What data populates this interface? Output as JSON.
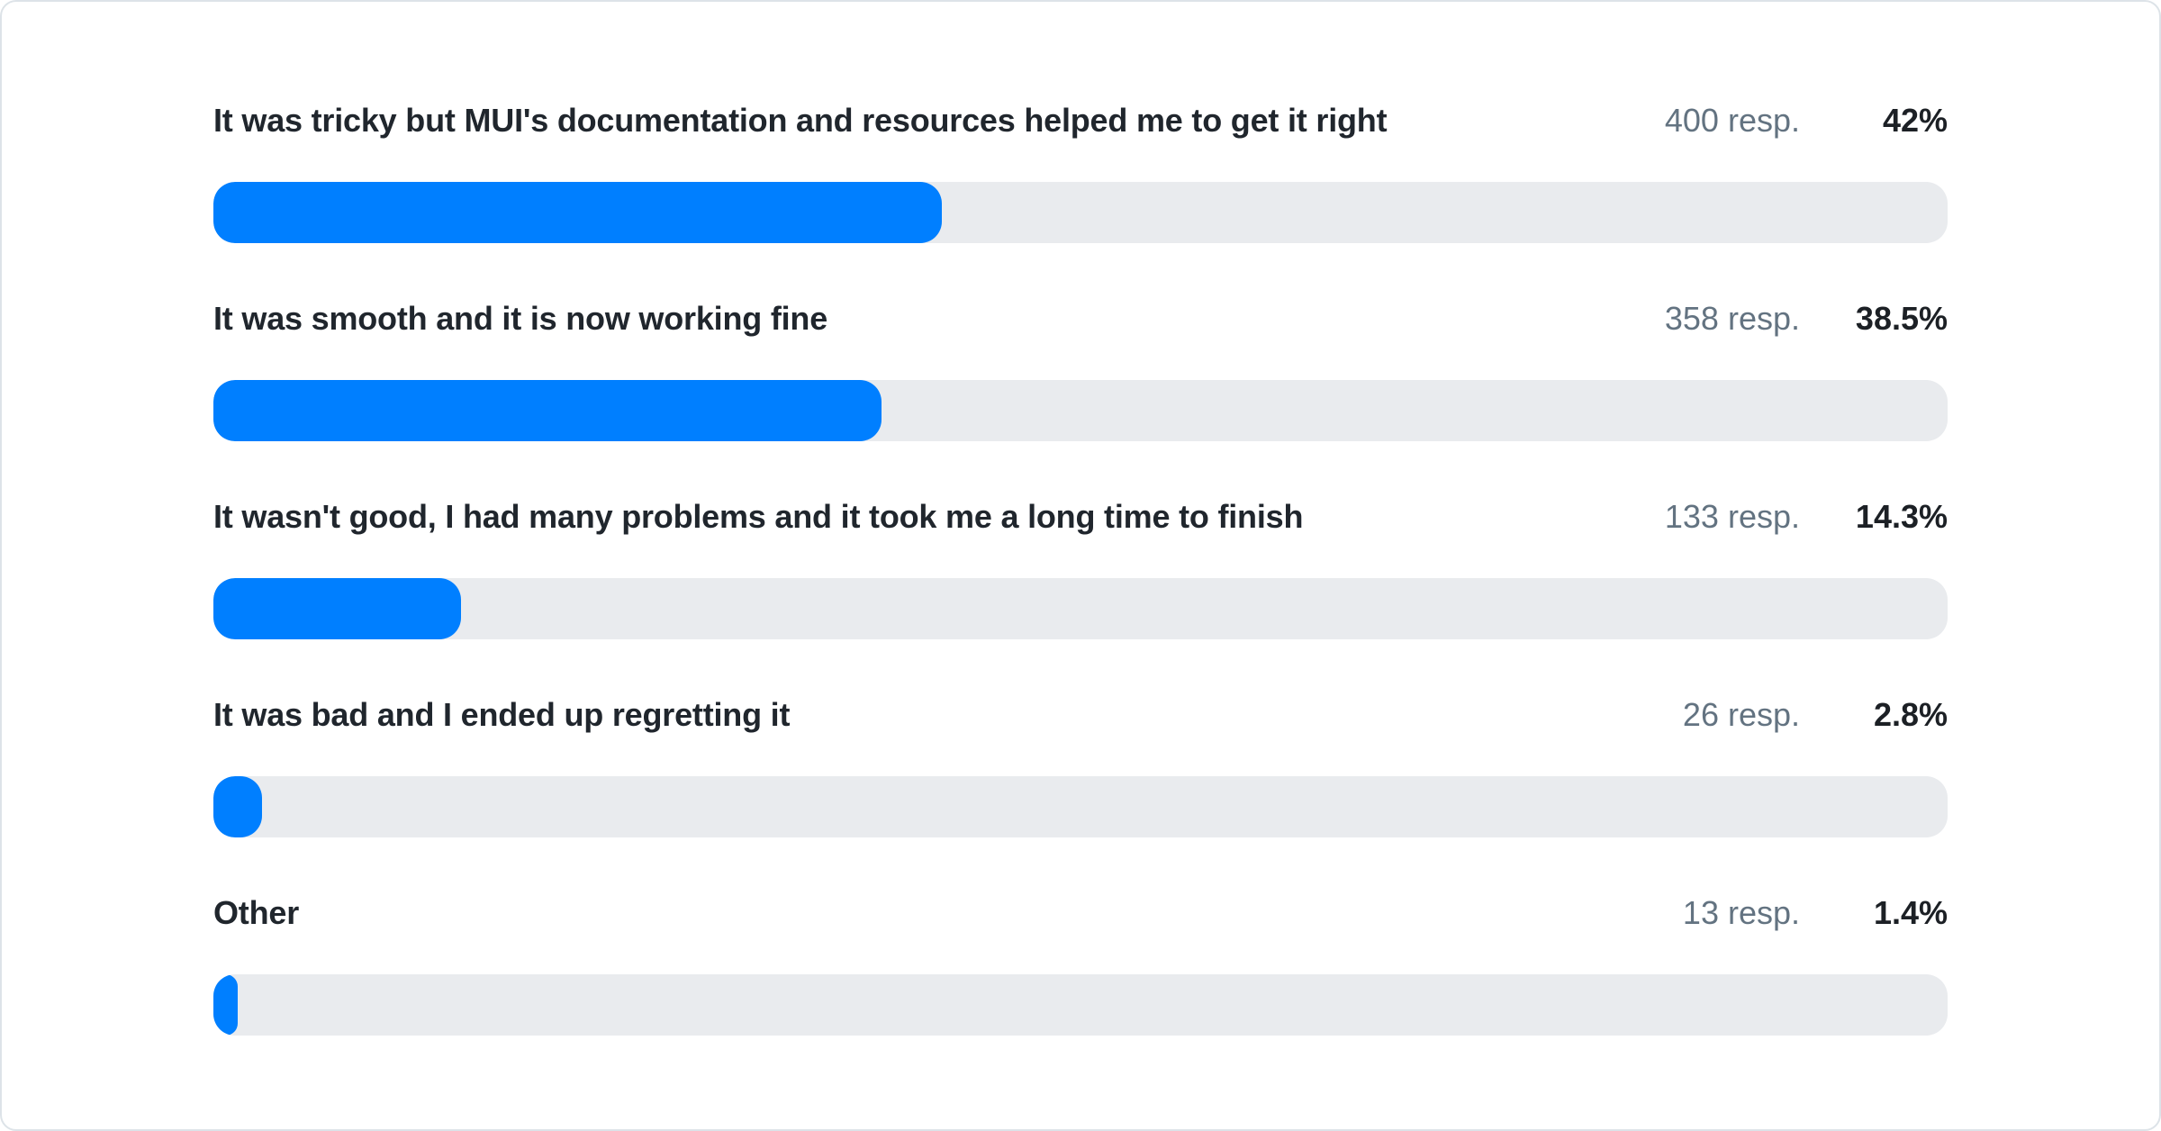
{
  "chart_data": {
    "type": "bar",
    "orientation": "horizontal",
    "unit": "%",
    "xlim": [
      0,
      100
    ],
    "grid": false,
    "legend": false,
    "categories": [
      "It was tricky but MUI's documentation and resources helped me to get it right",
      "It was smooth and it is now working fine",
      "It wasn't good, I had many problems and it took me a long time to finish",
      "It was bad and I ended up regretting it",
      "Other"
    ],
    "values": [
      42,
      38.5,
      14.3,
      2.8,
      1.4
    ],
    "response_counts": [
      400,
      358,
      133,
      26,
      13
    ],
    "rows": [
      {
        "label": "It was tricky but MUI's documentation and resources helped me to get it right",
        "responses": "400 resp.",
        "percent": "42%",
        "value": 42
      },
      {
        "label": "It was smooth and it is now working fine",
        "responses": "358 resp.",
        "percent": "38.5%",
        "value": 38.5
      },
      {
        "label": "It wasn't good, I had many problems and it took me a long time to finish",
        "responses": "133 resp.",
        "percent": "14.3%",
        "value": 14.3
      },
      {
        "label": "It was bad and I ended up regretting it",
        "responses": "26 resp.",
        "percent": "2.8%",
        "value": 2.8
      },
      {
        "label": "Other",
        "responses": "13 resp.",
        "percent": "1.4%",
        "value": 1.4
      }
    ],
    "colors": {
      "bar": "#007FFF",
      "track": "#E9EBEE",
      "label_text": "#20262D",
      "responses_text": "#637381",
      "percent_text": "#1C2025",
      "card_border": "#DDE3E8",
      "card_background": "#FFFFFF"
    }
  }
}
